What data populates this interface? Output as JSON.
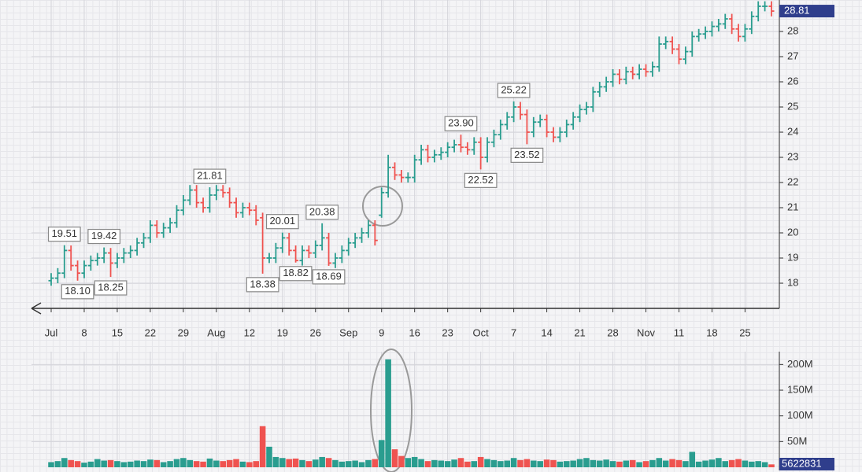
{
  "chart_data": {
    "type": "ohlc",
    "categories": [
      "Jul",
      null,
      null,
      null,
      null,
      "8",
      null,
      null,
      null,
      null,
      "15",
      null,
      null,
      null,
      null,
      "22",
      null,
      null,
      null,
      null,
      "29",
      null,
      null,
      null,
      null,
      "Aug",
      null,
      null,
      null,
      null,
      "12",
      null,
      null,
      null,
      null,
      "19",
      null,
      null,
      null,
      null,
      "26",
      null,
      null,
      null,
      null,
      "Sep",
      null,
      null,
      null,
      null,
      "9",
      null,
      null,
      null,
      null,
      "16",
      null,
      null,
      null,
      null,
      "23",
      null,
      null,
      null,
      null,
      "Oct",
      null,
      null,
      null,
      null,
      "7",
      null,
      null,
      null,
      null,
      "14",
      null,
      null,
      null,
      null,
      "21",
      null,
      null,
      null,
      null,
      "28",
      null,
      null,
      null,
      null,
      "Nov",
      null,
      null,
      null,
      null,
      "11",
      null,
      null,
      null,
      null,
      "18",
      null,
      null,
      null,
      null,
      "25",
      null,
      null,
      null,
      null
    ],
    "open": [
      18.1,
      18.2,
      18.4,
      19.3,
      18.7,
      18.4,
      18.7,
      18.9,
      19.0,
      19.2,
      18.8,
      19.0,
      19.2,
      19.3,
      19.6,
      19.8,
      20.3,
      20.0,
      20.2,
      20.4,
      20.9,
      21.3,
      21.7,
      21.2,
      21.0,
      21.5,
      21.7,
      21.6,
      21.2,
      20.8,
      21.0,
      20.9,
      20.6,
      19.0,
      19.0,
      19.4,
      19.8,
      19.3,
      18.9,
      19.3,
      19.2,
      19.5,
      19.8,
      18.8,
      19.0,
      19.3,
      19.6,
      19.8,
      20.0,
      20.3,
      20.7,
      21.6,
      22.6,
      22.3,
      22.2,
      22.2,
      22.9,
      23.3,
      23.0,
      23.1,
      23.2,
      23.4,
      23.5,
      23.4,
      23.3,
      23.6,
      23.0,
      23.6,
      23.9,
      24.3,
      24.6,
      25.0,
      24.7,
      24.0,
      24.4,
      24.5,
      24.0,
      23.8,
      24.0,
      24.3,
      24.6,
      24.9,
      25.0,
      25.6,
      25.8,
      26.0,
      26.3,
      26.1,
      26.4,
      26.3,
      26.5,
      26.4,
      26.6,
      27.5,
      27.6,
      27.3,
      26.9,
      27.2,
      27.8,
      27.9,
      28.0,
      28.2,
      28.3,
      28.5,
      28.1,
      27.8,
      28.1,
      28.6,
      29.0,
      29.0
    ],
    "high": [
      18.4,
      18.6,
      19.51,
      19.5,
      18.9,
      18.9,
      19.1,
      19.2,
      19.42,
      19.4,
      19.2,
      19.4,
      19.5,
      19.8,
      20.0,
      20.5,
      20.5,
      20.4,
      20.6,
      21.1,
      21.5,
      21.9,
      21.9,
      21.4,
      21.81,
      21.9,
      21.9,
      21.8,
      21.4,
      21.2,
      21.2,
      21.1,
      20.8,
      19.2,
      19.6,
      20.01,
      20.0,
      19.5,
      19.5,
      19.5,
      19.7,
      20.38,
      20.0,
      19.2,
      19.5,
      19.8,
      20.0,
      20.2,
      20.5,
      20.5,
      21.8,
      23.1,
      22.8,
      22.5,
      22.4,
      23.1,
      23.5,
      23.5,
      23.3,
      23.4,
      23.6,
      23.7,
      23.9,
      23.6,
      23.8,
      23.8,
      23.8,
      24.1,
      24.5,
      24.8,
      25.22,
      25.2,
      24.9,
      24.6,
      24.7,
      24.7,
      24.2,
      24.2,
      24.5,
      24.8,
      25.1,
      25.2,
      25.8,
      26.0,
      26.2,
      26.5,
      26.5,
      26.6,
      26.6,
      26.7,
      26.7,
      26.8,
      27.8,
      27.8,
      27.8,
      27.5,
      27.4,
      28.0,
      28.1,
      28.2,
      28.4,
      28.5,
      28.7,
      28.7,
      28.3,
      28.3,
      28.8,
      29.2,
      29.2,
      29.2
    ],
    "low": [
      17.9,
      18.0,
      18.2,
      18.5,
      18.1,
      18.2,
      18.5,
      18.7,
      18.8,
      18.25,
      18.6,
      18.8,
      19.0,
      19.1,
      19.4,
      19.6,
      19.8,
      19.8,
      20.0,
      20.2,
      20.7,
      21.1,
      21.0,
      20.8,
      20.8,
      21.3,
      21.4,
      21.0,
      20.6,
      20.6,
      20.7,
      20.3,
      18.38,
      18.8,
      18.8,
      19.2,
      19.1,
      18.82,
      18.7,
      19.0,
      19.0,
      19.3,
      18.69,
      18.6,
      18.8,
      19.1,
      19.4,
      19.6,
      19.8,
      19.5,
      20.6,
      21.4,
      22.1,
      22.0,
      22.0,
      22.0,
      22.7,
      22.8,
      22.8,
      22.9,
      23.0,
      23.2,
      23.2,
      23.1,
      23.1,
      22.52,
      22.8,
      23.4,
      23.7,
      24.1,
      24.4,
      24.5,
      23.52,
      23.8,
      24.2,
      23.8,
      23.6,
      23.6,
      23.8,
      24.1,
      24.4,
      24.7,
      24.8,
      25.4,
      25.6,
      25.8,
      25.9,
      25.9,
      26.1,
      26.1,
      26.2,
      26.2,
      26.4,
      27.3,
      27.1,
      26.7,
      26.7,
      27.0,
      27.6,
      27.7,
      27.8,
      28.0,
      28.1,
      27.9,
      27.6,
      27.6,
      27.9,
      28.4,
      28.8,
      28.6
    ],
    "close": [
      18.2,
      18.4,
      19.3,
      18.7,
      18.4,
      18.7,
      18.9,
      19.0,
      19.2,
      18.8,
      19.0,
      19.2,
      19.3,
      19.6,
      19.8,
      20.3,
      20.0,
      20.2,
      20.4,
      20.9,
      21.3,
      21.7,
      21.2,
      21.0,
      21.5,
      21.7,
      21.6,
      21.2,
      20.8,
      21.0,
      20.9,
      20.5,
      19.0,
      19.0,
      19.4,
      19.8,
      19.3,
      18.9,
      19.3,
      19.2,
      19.5,
      19.8,
      18.8,
      19.0,
      19.3,
      19.6,
      19.8,
      20.0,
      20.3,
      19.7,
      21.6,
      22.6,
      22.3,
      22.2,
      22.2,
      22.9,
      23.3,
      23.0,
      23.1,
      23.2,
      23.4,
      23.5,
      23.4,
      23.3,
      23.6,
      23.0,
      23.6,
      23.9,
      24.3,
      24.6,
      25.0,
      24.7,
      24.0,
      24.4,
      24.5,
      24.0,
      23.8,
      24.0,
      24.3,
      24.6,
      24.9,
      25.0,
      25.6,
      25.8,
      26.0,
      26.3,
      26.1,
      26.4,
      26.3,
      26.5,
      26.4,
      26.6,
      27.5,
      27.6,
      27.3,
      26.9,
      27.2,
      27.8,
      27.9,
      28.0,
      28.2,
      28.3,
      28.5,
      28.1,
      27.8,
      28.1,
      28.6,
      29.0,
      29.0,
      28.81
    ],
    "high_labels": [
      null,
      null,
      "19.51",
      null,
      null,
      null,
      null,
      null,
      "19.42",
      null,
      null,
      null,
      null,
      null,
      null,
      null,
      null,
      null,
      null,
      null,
      null,
      null,
      null,
      null,
      "21.81",
      null,
      null,
      null,
      null,
      null,
      null,
      null,
      null,
      null,
      null,
      "20.01",
      null,
      null,
      null,
      null,
      null,
      "20.38",
      null,
      null,
      null,
      null,
      null,
      null,
      null,
      null,
      null,
      null,
      null,
      null,
      null,
      null,
      null,
      null,
      null,
      null,
      null,
      null,
      "23.90",
      null,
      null,
      null,
      null,
      null,
      null,
      null,
      "25.22",
      null,
      null,
      null,
      null,
      null,
      null,
      null,
      null,
      null,
      null,
      null,
      null,
      null,
      null,
      null,
      null,
      null,
      null,
      null,
      null,
      null,
      null,
      null,
      null,
      null,
      null,
      null,
      null,
      null,
      null,
      null,
      null,
      null,
      null,
      null,
      null,
      null,
      null,
      null
    ],
    "low_labels": [
      null,
      null,
      null,
      null,
      "18.10",
      null,
      null,
      null,
      null,
      "18.25",
      null,
      null,
      null,
      null,
      null,
      null,
      null,
      null,
      null,
      null,
      null,
      null,
      null,
      null,
      null,
      null,
      null,
      null,
      null,
      null,
      null,
      null,
      "18.38",
      null,
      null,
      null,
      null,
      "18.82",
      null,
      null,
      null,
      null,
      "18.69",
      null,
      null,
      null,
      null,
      null,
      null,
      null,
      null,
      null,
      null,
      null,
      null,
      null,
      null,
      null,
      null,
      null,
      null,
      null,
      null,
      null,
      null,
      "22.52",
      null,
      null,
      null,
      null,
      null,
      null,
      "23.52",
      null,
      null,
      null,
      null,
      null,
      null,
      null,
      null,
      null,
      null,
      null,
      null,
      null,
      null,
      null,
      null,
      null,
      null,
      null,
      null,
      null,
      null,
      null,
      null,
      null,
      null,
      null,
      null,
      null,
      null,
      null,
      null,
      null,
      null,
      null,
      null,
      null,
      null,
      null,
      null,
      null,
      null
    ],
    "ylim": [
      17,
      29.25
    ],
    "yticks": [
      18,
      19,
      20,
      21,
      22,
      23,
      24,
      25,
      26,
      27,
      28
    ],
    "volume": [
      10000000,
      12000000,
      18000000,
      14000000,
      12000000,
      9000000,
      11000000,
      16000000,
      13000000,
      14000000,
      12000000,
      10000000,
      11000000,
      13000000,
      12000000,
      15000000,
      14000000,
      10000000,
      12000000,
      16000000,
      18000000,
      14000000,
      12000000,
      11000000,
      17000000,
      13000000,
      12000000,
      14000000,
      16000000,
      11000000,
      10000000,
      12000000,
      80000000,
      40000000,
      20000000,
      18000000,
      16000000,
      17000000,
      14000000,
      12000000,
      15000000,
      20000000,
      18000000,
      14000000,
      11000000,
      12000000,
      13000000,
      10000000,
      14000000,
      16000000,
      53000000,
      210000000,
      35000000,
      22000000,
      18000000,
      20000000,
      16000000,
      12000000,
      14000000,
      13000000,
      12000000,
      15000000,
      18000000,
      11000000,
      12000000,
      20000000,
      16000000,
      14000000,
      12000000,
      13000000,
      18000000,
      14000000,
      16000000,
      13000000,
      12000000,
      15000000,
      14000000,
      11000000,
      12000000,
      13000000,
      16000000,
      18000000,
      14000000,
      13000000,
      15000000,
      12000000,
      11000000,
      13000000,
      14000000,
      10000000,
      12000000,
      14000000,
      18000000,
      13000000,
      16000000,
      14000000,
      12000000,
      30000000,
      11000000,
      13000000,
      15000000,
      18000000,
      12000000,
      14000000,
      16000000,
      13000000,
      11000000,
      12000000,
      10000000,
      5622831
    ],
    "volume_ylim": [
      0,
      225000000
    ],
    "volume_yticks": [
      {
        "value": 50000000,
        "label": "50M"
      },
      {
        "value": 100000000,
        "label": "100M"
      },
      {
        "value": 150000000,
        "label": "150M"
      },
      {
        "value": 200000000,
        "label": "200M"
      }
    ],
    "up_color": "#2a9d8f",
    "down_color": "#ef5350",
    "grid": true
  }
}
